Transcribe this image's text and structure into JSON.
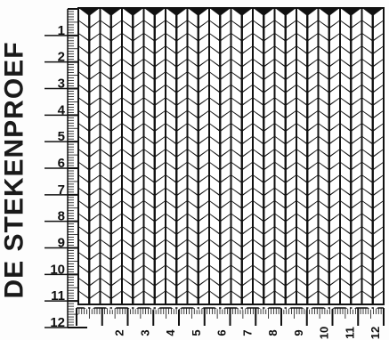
{
  "title": "DE STEKENPROEF",
  "vertical_ruler": {
    "labels": [
      "1",
      "2",
      "3",
      "4",
      "5",
      "6",
      "7",
      "8",
      "9",
      "10",
      "11",
      "12"
    ]
  },
  "horizontal_ruler": {
    "labels": [
      "2",
      "3",
      "4",
      "5",
      "6",
      "7",
      "8",
      "9",
      "10",
      "11",
      "12"
    ]
  },
  "swatch": {
    "stitches_per_row": 14,
    "rows": 23
  },
  "colors": {
    "ink": "#111111",
    "paper": "#ffffff"
  }
}
